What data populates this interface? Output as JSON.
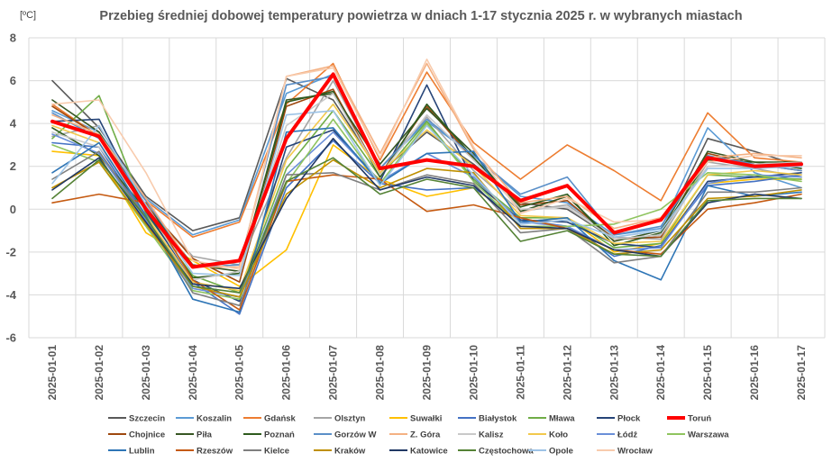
{
  "chart_data": {
    "type": "line",
    "title": "Przebieg średniej dobowej temperatury powietrza w dniach 1-17 stycznia 2025 r. w wybranych miastach",
    "ylabel": "[ºC]",
    "xlabel": "",
    "ylim": [
      -6,
      8
    ],
    "yticks": [
      "-6",
      "-4",
      "-2",
      "0",
      "2",
      "4",
      "6",
      "8"
    ],
    "grid": true,
    "legend_position": "bottom",
    "categories": [
      "2025-01-01",
      "2025-01-02",
      "2025-01-03",
      "2025-01-04",
      "2025-01-05",
      "2025-01-06",
      "2025-01-07",
      "2025-01-08",
      "2025-01-09",
      "2025-01-10",
      "2025-01-11",
      "2025-01-12",
      "2025-01-13",
      "2025-01-14",
      "2025-01-15",
      "2025-01-16",
      "2025-01-17"
    ],
    "series": [
      {
        "name": "Szczecin",
        "color": "#595959",
        "values": [
          6.0,
          3.8,
          0.6,
          -1.0,
          -0.4,
          6.1,
          5.1,
          1.7,
          3.6,
          2.1,
          0.3,
          0.0,
          -1.4,
          -1.2,
          3.3,
          2.7,
          2.0
        ]
      },
      {
        "name": "Koszalin",
        "color": "#5b9bd5",
        "values": [
          4.6,
          3.6,
          0.5,
          -1.2,
          -0.5,
          5.4,
          6.3,
          1.9,
          4.1,
          2.5,
          0.6,
          0.3,
          -1.2,
          -0.9,
          3.8,
          1.7,
          1.0
        ]
      },
      {
        "name": "Gdańsk",
        "color": "#ed7d31",
        "values": [
          4.9,
          3.4,
          0.4,
          -1.3,
          -0.6,
          4.9,
          6.8,
          2.3,
          6.4,
          3.1,
          1.4,
          3.0,
          1.8,
          0.4,
          4.5,
          2.4,
          2.2
        ]
      },
      {
        "name": "Olsztyn",
        "color": "#a5a5a5",
        "values": [
          3.4,
          3.9,
          0.1,
          -2.2,
          -2.6,
          2.4,
          6.0,
          1.9,
          4.3,
          1.8,
          -0.1,
          0.2,
          -1.3,
          -1.4,
          2.2,
          1.9,
          1.5
        ]
      },
      {
        "name": "Suwałki",
        "color": "#ffc000",
        "values": [
          2.7,
          2.5,
          -1.1,
          -2.4,
          -3.6,
          -1.9,
          3.0,
          1.4,
          0.6,
          1.0,
          -0.6,
          -0.4,
          -2.0,
          -1.6,
          1.2,
          1.4,
          1.4
        ]
      },
      {
        "name": "Białystok",
        "color": "#4472c4",
        "values": [
          3.1,
          2.9,
          -0.4,
          -3.4,
          -4.9,
          1.0,
          3.2,
          1.2,
          0.9,
          1.0,
          -0.5,
          -0.8,
          -2.2,
          -1.7,
          1.1,
          1.3,
          1.6
        ]
      },
      {
        "name": "Mława",
        "color": "#70ad47",
        "values": [
          3.3,
          5.3,
          -0.2,
          -3.1,
          -3.9,
          1.9,
          4.6,
          1.5,
          4.1,
          1.4,
          -0.4,
          -0.4,
          -1.8,
          -1.6,
          1.6,
          1.5,
          1.4
        ]
      },
      {
        "name": "Płock",
        "color": "#264478",
        "values": [
          4.1,
          4.2,
          -0.1,
          -3.3,
          -4.3,
          2.9,
          3.7,
          1.3,
          5.8,
          1.3,
          -0.5,
          -0.6,
          -1.6,
          -1.8,
          1.3,
          1.5,
          1.7
        ]
      },
      {
        "name": "Toruń",
        "color": "#ff0000",
        "width": 4,
        "values": [
          4.1,
          3.4,
          0.0,
          -2.7,
          -2.4,
          3.3,
          6.3,
          1.9,
          2.3,
          2.0,
          0.4,
          1.1,
          -1.1,
          -0.5,
          2.4,
          2.0,
          2.1
        ]
      },
      {
        "name": "Chojnice",
        "color": "#9e480e",
        "values": [
          4.8,
          3.4,
          0.2,
          -2.3,
          -3.4,
          4.8,
          5.6,
          1.6,
          4.8,
          2.3,
          0.2,
          0.4,
          -1.4,
          -1.3,
          2.6,
          2.1,
          1.8
        ]
      },
      {
        "name": "Piła",
        "color": "#375623",
        "values": [
          5.1,
          3.6,
          0.2,
          -2.6,
          -2.9,
          5.1,
          5.4,
          2.1,
          4.7,
          2.6,
          -0.1,
          0.6,
          -1.5,
          -1.0,
          2.7,
          2.2,
          1.9
        ]
      },
      {
        "name": "Poznań",
        "color": "#2e5a1e",
        "values": [
          3.8,
          2.5,
          0.0,
          -3.2,
          -3.0,
          5.0,
          5.5,
          1.5,
          4.9,
          2.4,
          0.1,
          0.7,
          -1.7,
          -1.1,
          2.3,
          2.2,
          2.2
        ]
      },
      {
        "name": "Gorzów W",
        "color": "#5a8fc8",
        "values": [
          4.5,
          3.3,
          0.4,
          -2.7,
          -2.6,
          5.8,
          6.2,
          1.9,
          4.2,
          2.5,
          0.7,
          1.5,
          -1.2,
          -0.8,
          2.5,
          2.1,
          1.8
        ]
      },
      {
        "name": "Z. Góra",
        "color": "#f4b183",
        "values": [
          4.4,
          3.5,
          0.5,
          -2.7,
          -2.7,
          6.2,
          6.7,
          2.6,
          6.8,
          2.8,
          0.3,
          0.6,
          -0.9,
          -0.4,
          2.4,
          2.6,
          2.4
        ]
      },
      {
        "name": "Kalisz",
        "color": "#c9c9c9",
        "values": [
          3.6,
          2.9,
          0.1,
          -3.3,
          -2.9,
          3.9,
          5.4,
          1.6,
          4.4,
          2.3,
          0.0,
          0.1,
          -1.4,
          -1.2,
          2.0,
          2.1,
          2.2
        ]
      },
      {
        "name": "Koło",
        "color": "#f2c94c",
        "values": [
          3.9,
          3.1,
          -0.3,
          -3.4,
          -3.8,
          2.3,
          4.9,
          1.7,
          3.7,
          2.0,
          -0.3,
          -0.4,
          -1.6,
          -1.5,
          1.6,
          1.8,
          1.6
        ]
      },
      {
        "name": "Łódź",
        "color": "#6a8fd8",
        "values": [
          3.5,
          2.6,
          -0.5,
          -3.7,
          -4.1,
          1.6,
          3.6,
          1.3,
          2.6,
          1.5,
          -0.6,
          -0.8,
          -1.9,
          -1.8,
          1.2,
          1.6,
          1.5
        ]
      },
      {
        "name": "Warszawa",
        "color": "#8fc45f",
        "values": [
          3.0,
          2.2,
          -0.8,
          -3.8,
          -4.2,
          1.2,
          4.2,
          1.2,
          4.0,
          1.3,
          -0.8,
          -0.8,
          -0.7,
          0.0,
          1.7,
          1.6,
          1.3
        ]
      },
      {
        "name": "Lublin",
        "color": "#2e75b6",
        "values": [
          1.7,
          3.1,
          -0.3,
          -4.2,
          -4.8,
          3.6,
          3.8,
          1.2,
          2.6,
          2.7,
          -0.6,
          -0.4,
          -2.4,
          -3.3,
          1.1,
          0.6,
          0.8
        ]
      },
      {
        "name": "Rzeszów",
        "color": "#c55a11",
        "values": [
          0.3,
          0.7,
          0.3,
          -3.3,
          -4.7,
          1.3,
          1.6,
          1.4,
          -0.1,
          0.2,
          -0.4,
          -0.9,
          -1.9,
          -2.1,
          0.0,
          0.3,
          0.7
        ]
      },
      {
        "name": "Kielce",
        "color": "#7f7f7f",
        "values": [
          1.4,
          2.7,
          -0.4,
          -3.9,
          -4.5,
          1.6,
          1.7,
          0.9,
          1.6,
          1.2,
          -1.1,
          -0.9,
          -2.5,
          -2.2,
          0.8,
          0.8,
          1.0
        ]
      },
      {
        "name": "Kraków",
        "color": "#bf9000",
        "values": [
          1.0,
          2.2,
          -0.7,
          -3.6,
          -4.1,
          0.7,
          2.3,
          1.0,
          1.9,
          1.7,
          -0.9,
          -0.9,
          -2.1,
          -1.9,
          0.5,
          0.6,
          0.9
        ]
      },
      {
        "name": "Katowice",
        "color": "#203864",
        "values": [
          0.9,
          2.4,
          -0.6,
          -3.5,
          -3.7,
          0.5,
          3.3,
          0.9,
          1.5,
          1.1,
          -0.8,
          -0.9,
          -1.9,
          -2.2,
          0.3,
          0.7,
          0.5
        ]
      },
      {
        "name": "Częstochowa",
        "color": "#548235",
        "values": [
          0.5,
          2.3,
          -0.4,
          -3.6,
          -3.9,
          1.3,
          2.4,
          0.7,
          1.4,
          1.0,
          -1.5,
          -1.0,
          -2.1,
          -2.2,
          0.4,
          0.5,
          0.5
        ]
      },
      {
        "name": "Opole",
        "color": "#9dc3e6",
        "values": [
          1.2,
          3.9,
          0.2,
          -3.0,
          -3.1,
          4.4,
          4.6,
          1.1,
          3.9,
          1.6,
          -0.7,
          -0.5,
          -1.3,
          -1.0,
          1.9,
          1.9,
          2.0
        ]
      },
      {
        "name": "Wrocław",
        "color": "#f8cbad",
        "values": [
          4.9,
          5.1,
          1.7,
          -2.4,
          -2.8,
          6.2,
          6.6,
          2.4,
          7.0,
          2.9,
          -0.2,
          0.5,
          -0.6,
          -0.5,
          2.2,
          2.5,
          2.5
        ]
      }
    ]
  }
}
